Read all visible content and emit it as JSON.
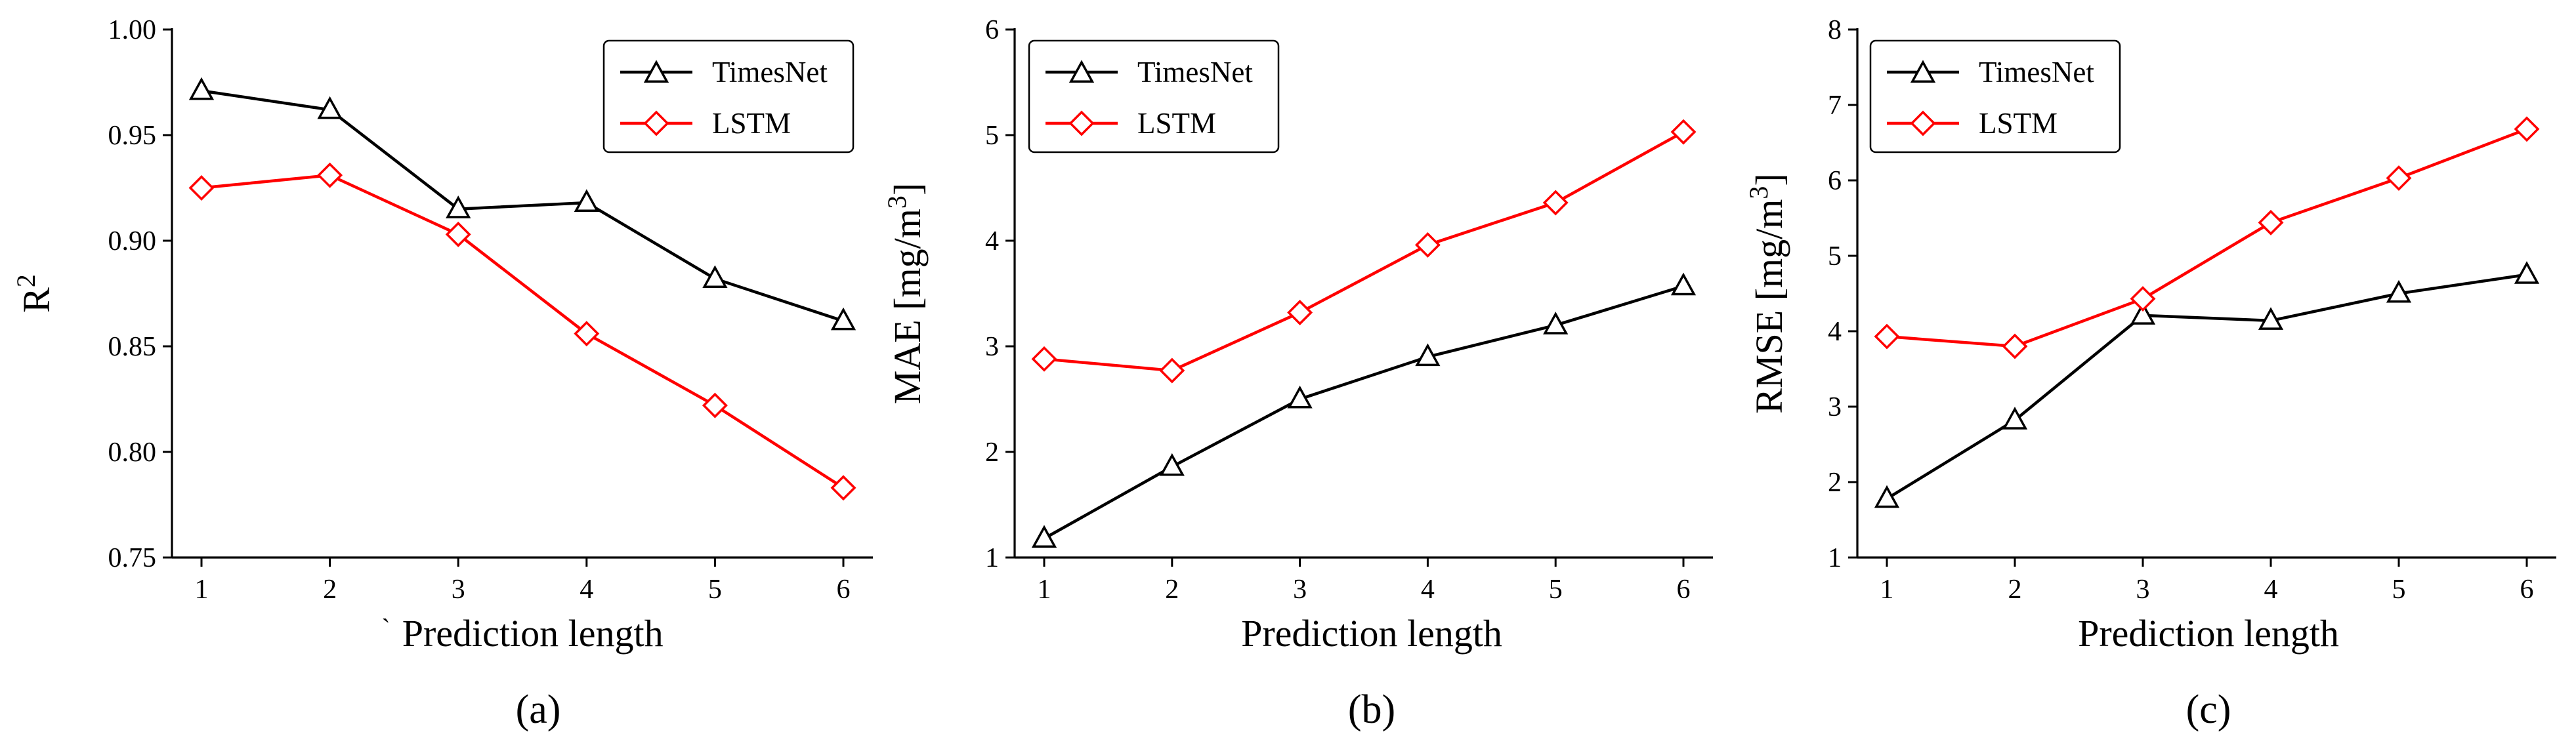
{
  "chart_data": [
    {
      "type": "line",
      "caption": "(a)",
      "title": "",
      "xlabel": "Prediction length",
      "xlabel_prefix": "`",
      "ylabel_base": "R",
      "ylabel_sup": "2",
      "ylabel_suffix": "",
      "x": [
        1,
        2,
        3,
        4,
        5,
        6
      ],
      "x_ticks": [
        "1",
        "2",
        "3",
        "4",
        "5",
        "6"
      ],
      "ylim": [
        0.75,
        1.0
      ],
      "y_ticks": [
        "0.75",
        "0.80",
        "0.85",
        "0.90",
        "0.95",
        "1.00"
      ],
      "legend_position": "top-right",
      "series": [
        {
          "name": "TimesNet",
          "color": "#000000",
          "marker": "triangle",
          "values": [
            0.971,
            0.962,
            0.915,
            0.918,
            0.882,
            0.862
          ]
        },
        {
          "name": "LSTM",
          "color": "#ff0000",
          "marker": "diamond",
          "values": [
            0.925,
            0.931,
            0.903,
            0.856,
            0.822,
            0.783
          ]
        }
      ]
    },
    {
      "type": "line",
      "caption": "(b)",
      "title": "",
      "xlabel": "Prediction length",
      "xlabel_prefix": "",
      "ylabel_base": "MAE [mg/m",
      "ylabel_sup": "3",
      "ylabel_suffix": "]",
      "x": [
        1,
        2,
        3,
        4,
        5,
        6
      ],
      "x_ticks": [
        "1",
        "2",
        "3",
        "4",
        "5",
        "6"
      ],
      "ylim": [
        1,
        6
      ],
      "y_ticks": [
        "1",
        "2",
        "3",
        "4",
        "5",
        "6"
      ],
      "legend_position": "top-left",
      "series": [
        {
          "name": "TimesNet",
          "color": "#000000",
          "marker": "triangle",
          "values": [
            1.18,
            1.86,
            2.5,
            2.9,
            3.2,
            3.57
          ]
        },
        {
          "name": "LSTM",
          "color": "#ff0000",
          "marker": "diamond",
          "values": [
            2.88,
            2.77,
            3.32,
            3.96,
            4.36,
            5.03
          ]
        }
      ]
    },
    {
      "type": "line",
      "caption": "(c)",
      "title": "",
      "xlabel": "Prediction length",
      "xlabel_prefix": "",
      "ylabel_base": "RMSE [mg/m",
      "ylabel_sup": "3",
      "ylabel_suffix": "]",
      "x": [
        1,
        2,
        3,
        4,
        5,
        6
      ],
      "x_ticks": [
        "1",
        "2",
        "3",
        "4",
        "5",
        "6"
      ],
      "ylim": [
        1,
        8
      ],
      "y_ticks": [
        "1",
        "2",
        "3",
        "4",
        "5",
        "6",
        "7",
        "8"
      ],
      "legend_position": "top-left",
      "series": [
        {
          "name": "TimesNet",
          "color": "#000000",
          "marker": "triangle",
          "values": [
            1.78,
            2.82,
            4.21,
            4.14,
            4.5,
            4.75
          ]
        },
        {
          "name": "LSTM",
          "color": "#ff0000",
          "marker": "diamond",
          "values": [
            3.93,
            3.8,
            4.43,
            5.44,
            6.03,
            6.68
          ]
        }
      ]
    }
  ]
}
